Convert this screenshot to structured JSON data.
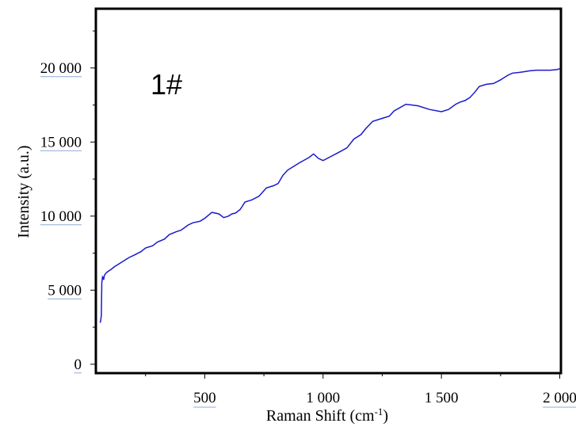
{
  "chart_data": {
    "type": "line",
    "annotation": "1#",
    "xlabel": "Raman Shift (cm",
    "xlabel_sup": "-1",
    "xlabel_end": ")",
    "ylabel": "Intensity (a.u.)",
    "xlim": [
      40,
      2005
    ],
    "ylim": [
      -600,
      24000
    ],
    "x_major_ticks": [
      500,
      1000,
      1500,
      2000
    ],
    "x_minor_ticks": [
      250,
      750,
      1250,
      1750
    ],
    "x_tick_labels": [
      "500",
      "1 000",
      "1 500",
      "2 000"
    ],
    "y_major_ticks": [
      0,
      5000,
      10000,
      15000,
      20000
    ],
    "y_minor_ticks": [
      2500,
      7500,
      12500,
      17500,
      22500
    ],
    "y_tick_labels": [
      "0",
      "5 000",
      "10 000",
      "15 000",
      "20 000"
    ],
    "grid": false,
    "line_color": "#1a1acc",
    "series": [
      {
        "x": [
          58,
          60,
          63,
          65,
          68,
          70,
          73,
          75,
          80,
          90,
          100,
          120,
          150,
          180,
          200,
          230,
          250,
          280,
          300,
          330,
          350,
          380,
          400,
          430,
          450,
          480,
          500,
          530,
          560,
          580,
          600,
          615,
          630,
          650,
          670,
          690,
          700,
          730,
          760,
          790,
          810,
          830,
          850,
          870,
          900,
          940,
          960,
          980,
          1000,
          1030,
          1060,
          1100,
          1130,
          1160,
          1180,
          1210,
          1250,
          1280,
          1300,
          1350,
          1400,
          1450,
          1500,
          1530,
          1560,
          1580,
          1600,
          1620,
          1640,
          1660,
          1690,
          1720,
          1750,
          1780,
          1800,
          1830,
          1850,
          1870,
          1900,
          1930,
          1960,
          1990,
          2000
        ],
        "y": [
          2800,
          2900,
          3300,
          5500,
          5900,
          5850,
          5700,
          5950,
          6100,
          6250,
          6350,
          6600,
          6900,
          7200,
          7350,
          7600,
          7850,
          8000,
          8250,
          8450,
          8750,
          8950,
          9050,
          9400,
          9550,
          9650,
          9850,
          10250,
          10150,
          9900,
          10000,
          10150,
          10200,
          10450,
          10950,
          11050,
          11100,
          11350,
          11900,
          12050,
          12200,
          12750,
          13100,
          13300,
          13600,
          13950,
          14200,
          13900,
          13750,
          14000,
          14250,
          14600,
          15200,
          15500,
          15900,
          16400,
          16600,
          16750,
          17100,
          17550,
          17450,
          17200,
          17050,
          17200,
          17550,
          17700,
          17800,
          18000,
          18350,
          18750,
          18900,
          18950,
          19200,
          19500,
          19650,
          19700,
          19750,
          19800,
          19850,
          19850,
          19850,
          19900,
          19950
        ]
      }
    ]
  }
}
